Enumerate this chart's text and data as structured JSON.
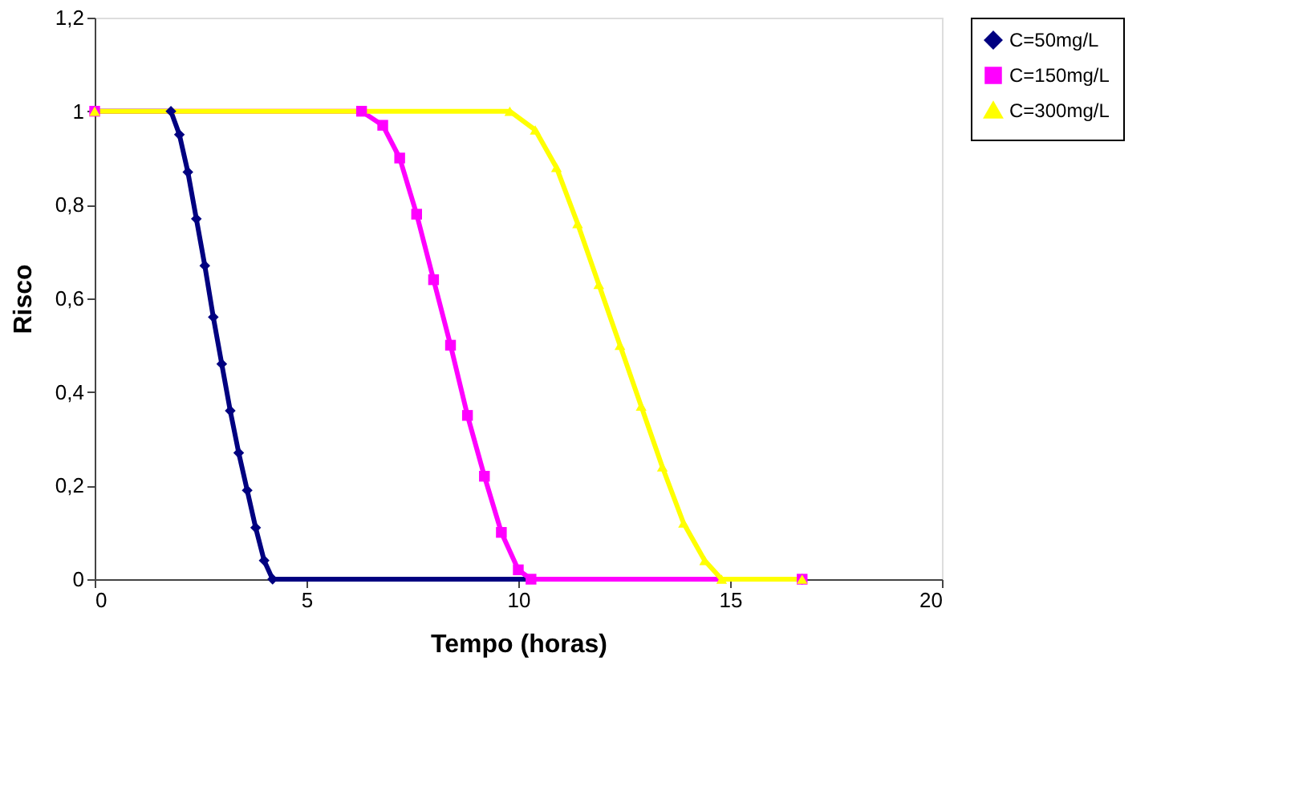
{
  "chart_data": {
    "type": "line",
    "xlabel": "Tempo (horas)",
    "ylabel": "Risco",
    "xlim": [
      0,
      20
    ],
    "xticks": [
      0,
      5,
      10,
      15,
      20
    ],
    "ylim": [
      0,
      1.2
    ],
    "yticks": [
      0,
      {
        "value": 0.2,
        "label": "0,2"
      },
      {
        "value": 0.4,
        "label": "0,4"
      },
      {
        "value": 0.6,
        "label": "0,6"
      },
      {
        "value": 0.8,
        "label": "0,8"
      },
      1,
      {
        "value": 1.2,
        "label": "1,2"
      }
    ],
    "grid": false,
    "legend": "top right",
    "line_style": "solid",
    "series": [
      {
        "name": "C=50mg/L",
        "color": "#000080",
        "marker": "diamond",
        "x": [
          0,
          1.8,
          2.0,
          2.2,
          2.4,
          2.6,
          2.8,
          3.0,
          3.2,
          3.4,
          3.6,
          3.8,
          4.0,
          4.2,
          16.7
        ],
        "values": [
          1,
          1,
          0.95,
          0.87,
          0.77,
          0.67,
          0.56,
          0.46,
          0.36,
          0.27,
          0.19,
          0.11,
          0.04,
          0,
          0
        ]
      },
      {
        "name": "C=150mg/L",
        "color": "#ff00ff",
        "marker": "square",
        "x": [
          0,
          6.3,
          6.8,
          7.2,
          7.6,
          8.0,
          8.4,
          8.8,
          9.2,
          9.6,
          10.0,
          10.3,
          16.7
        ],
        "values": [
          1,
          1,
          0.97,
          0.9,
          0.78,
          0.64,
          0.5,
          0.35,
          0.22,
          0.1,
          0.02,
          0,
          0
        ]
      },
      {
        "name": "C=300mg/L",
        "color": "#ffff00",
        "marker": "triangle",
        "x": [
          0,
          9.8,
          10.4,
          10.9,
          11.4,
          11.9,
          12.4,
          12.9,
          13.4,
          13.9,
          14.4,
          14.8,
          16.7
        ],
        "values": [
          1,
          1,
          0.96,
          0.88,
          0.76,
          0.63,
          0.5,
          0.37,
          0.24,
          0.12,
          0.04,
          0,
          0
        ]
      }
    ]
  }
}
